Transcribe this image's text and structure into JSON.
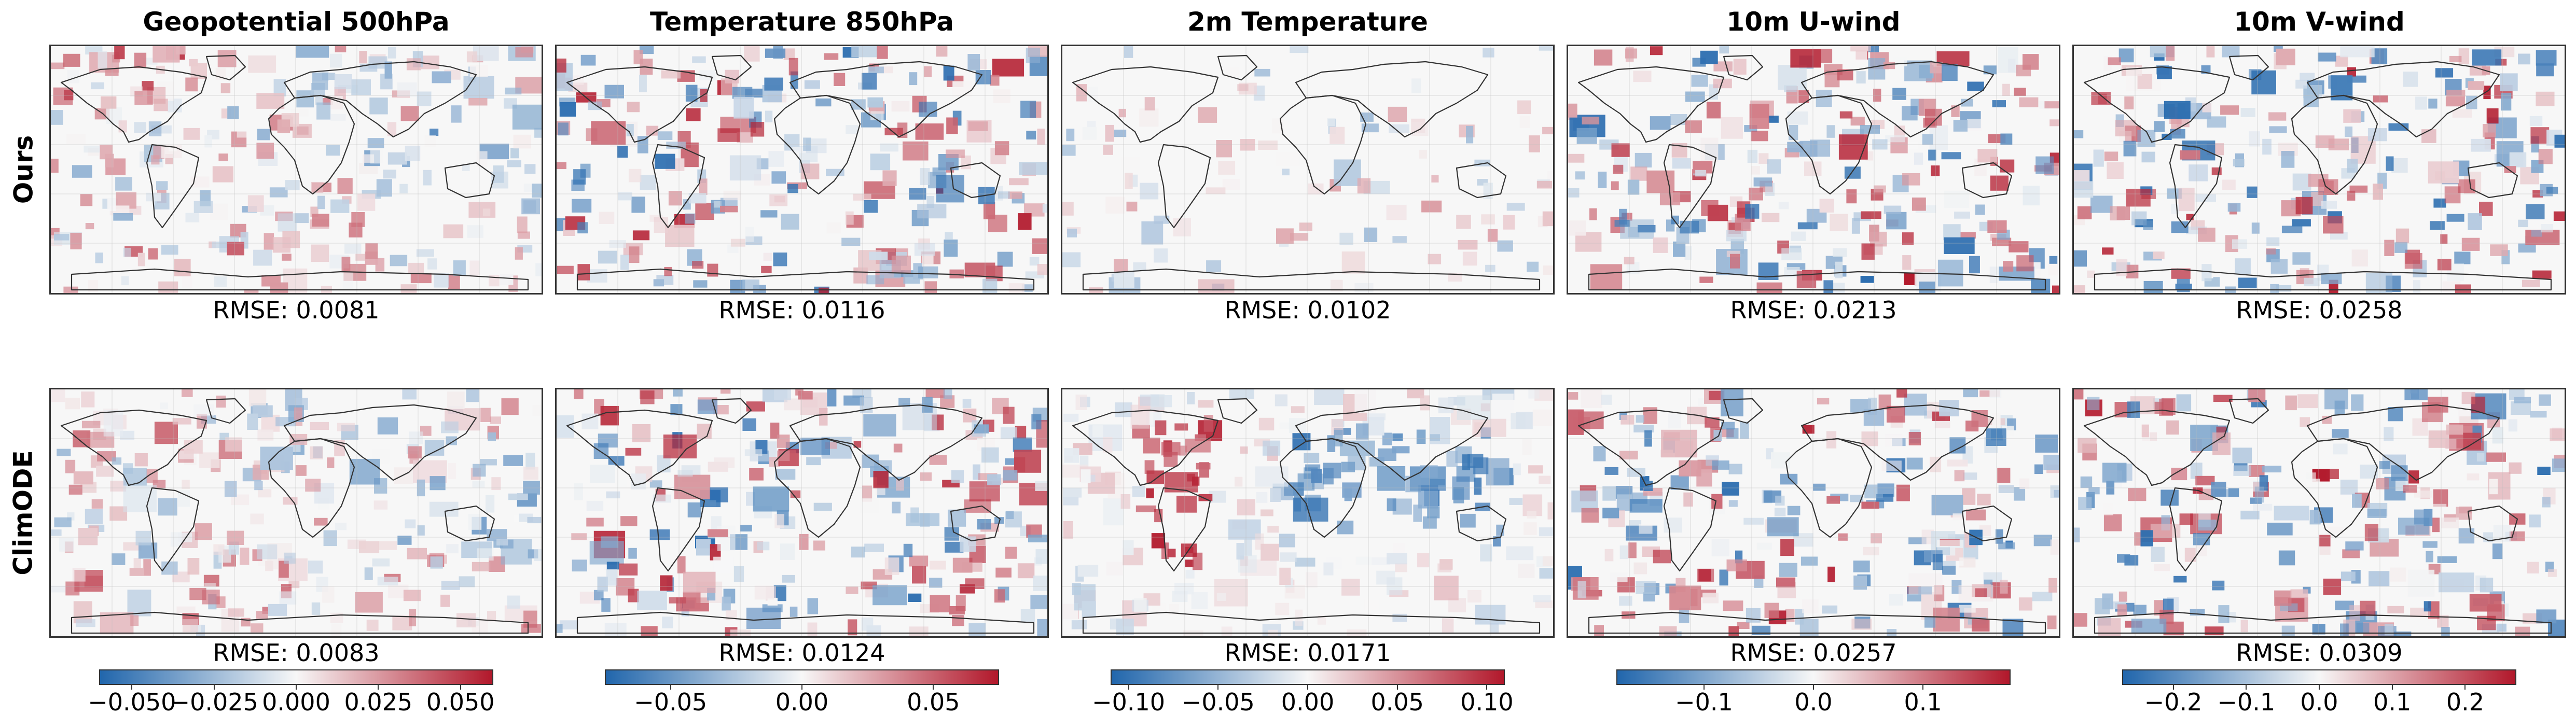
{
  "colors": {
    "negative": "#2166ac",
    "neutral": "#f7f7f7",
    "positive": "#b2182b"
  },
  "rows": [
    {
      "label": "Ours"
    },
    {
      "label": "ClimODE"
    }
  ],
  "chart_data": {
    "type": "heatmap",
    "description_colormap": "diverging blue-white-red",
    "columns": [
      {
        "title": "Geopotential 500hPa",
        "rmse": {
          "Ours": "RMSE: 0.0081",
          "ClimODE": "RMSE: 0.0083"
        },
        "colorbar": {
          "min": -0.06,
          "max": 0.06,
          "ticks": [
            -0.05,
            -0.025,
            0.0,
            0.025,
            0.05
          ],
          "tick_labels": [
            "−0.050",
            "−0.025",
            "0.000",
            "0.025",
            "0.050"
          ]
        }
      },
      {
        "title": "Temperature 850hPa",
        "rmse": {
          "Ours": "RMSE: 0.0116",
          "ClimODE": "RMSE: 0.0124"
        },
        "colorbar": {
          "min": -0.075,
          "max": 0.075,
          "ticks": [
            -0.05,
            0.0,
            0.05
          ],
          "tick_labels": [
            "−0.05",
            "0.00",
            "0.05"
          ]
        }
      },
      {
        "title": "2m Temperature",
        "rmse": {
          "Ours": "RMSE: 0.0102",
          "ClimODE": "RMSE: 0.0171"
        },
        "colorbar": {
          "min": -0.11,
          "max": 0.11,
          "ticks": [
            -0.1,
            -0.05,
            0.0,
            0.05,
            0.1
          ],
          "tick_labels": [
            "−0.10",
            "−0.05",
            "0.00",
            "0.05",
            "0.10"
          ]
        }
      },
      {
        "title": "10m U-wind",
        "rmse": {
          "Ours": "RMSE: 0.0213",
          "ClimODE": "RMSE: 0.0257"
        },
        "colorbar": {
          "min": -0.18,
          "max": 0.18,
          "ticks": [
            -0.1,
            0.0,
            0.1
          ],
          "tick_labels": [
            "−0.1",
            "0.0",
            "0.1"
          ]
        }
      },
      {
        "title": "10m V-wind",
        "rmse": {
          "Ours": "RMSE: 0.0258",
          "ClimODE": "RMSE: 0.0309"
        },
        "colorbar": {
          "min": -0.27,
          "max": 0.27,
          "ticks": [
            -0.2,
            -0.1,
            0.0,
            0.1,
            0.2
          ],
          "tick_labels": [
            "−0.2",
            "−0.1",
            "0.0",
            "0.1",
            "0.2"
          ]
        }
      }
    ]
  }
}
